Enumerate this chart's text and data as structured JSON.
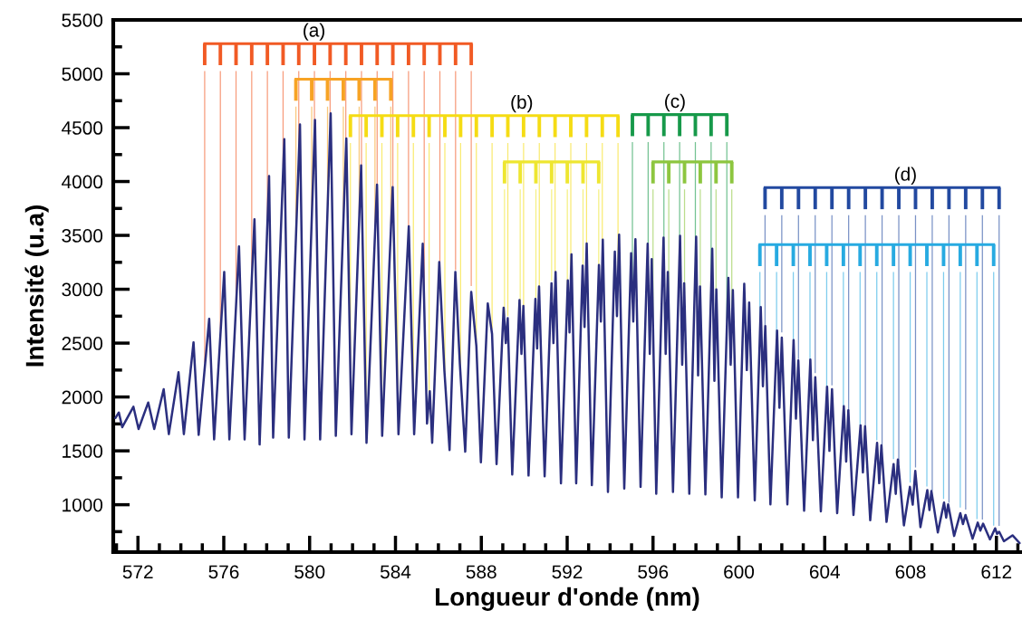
{
  "chart_data": {
    "type": "line",
    "xlabel": "Longueur d'onde (nm)",
    "ylabel": "Intensité (u.a)",
    "xlim": [
      570.85,
      613.15
    ],
    "ylim": [
      560,
      5500
    ],
    "xticks": [
      {
        "value": 571,
        "label": null
      },
      572,
      {
        "value": 573,
        "label": null
      },
      {
        "value": 574,
        "label": null
      },
      {
        "value": 575,
        "label": null
      },
      576,
      {
        "value": 577,
        "label": null
      },
      {
        "value": 578,
        "label": null
      },
      {
        "value": 579,
        "label": null
      },
      580,
      {
        "value": 581,
        "label": null
      },
      {
        "value": 582,
        "label": null
      },
      {
        "value": 583,
        "label": null
      },
      584,
      {
        "value": 585,
        "label": null
      },
      {
        "value": 586,
        "label": null
      },
      {
        "value": 587,
        "label": null
      },
      588,
      {
        "value": 589,
        "label": null
      },
      {
        "value": 590,
        "label": null
      },
      {
        "value": 591,
        "label": null
      },
      592,
      {
        "value": 593,
        "label": null
      },
      {
        "value": 594,
        "label": null
      },
      {
        "value": 595,
        "label": null
      },
      596,
      {
        "value": 597,
        "label": null
      },
      {
        "value": 598,
        "label": null
      },
      {
        "value": 599,
        "label": null
      },
      600,
      {
        "value": 601,
        "label": null
      },
      {
        "value": 602,
        "label": null
      },
      {
        "value": 603,
        "label": null
      },
      604,
      {
        "value": 605,
        "label": null
      },
      {
        "value": 606,
        "label": null
      },
      {
        "value": 607,
        "label": null
      },
      608,
      {
        "value": 609,
        "label": null
      },
      {
        "value": 610,
        "label": null
      },
      {
        "value": 611,
        "label": null
      },
      612,
      {
        "value": 613,
        "label": null
      }
    ],
    "yticks": [
      {
        "value": 750,
        "label": null
      },
      1000,
      {
        "value": 1250,
        "label": null
      },
      1500,
      {
        "value": 1750,
        "label": null
      },
      2000,
      {
        "value": 2250,
        "label": null
      },
      2500,
      {
        "value": 2750,
        "label": null
      },
      3000,
      {
        "value": 3250,
        "label": null
      },
      3500,
      {
        "value": 3750,
        "label": null
      },
      4000,
      {
        "value": 4250,
        "label": null
      },
      4500,
      {
        "value": 4750,
        "label": null
      },
      5000,
      {
        "value": 5250,
        "label": null
      },
      5500
    ],
    "annotations": [
      "(a)",
      "(b)",
      "(c)",
      "(d)"
    ],
    "series": [
      {
        "color": "#2b2f7f",
        "x": [
          570.95,
          571.11,
          571.27,
          571.79,
          572.03,
          572.48,
          572.76,
          573.2,
          573.44,
          573.89,
          574.14,
          574.59,
          574.83,
          575.32,
          575.55,
          576.02,
          576.26,
          576.71,
          576.97,
          577.43,
          577.67,
          578.11,
          578.3,
          578.82,
          579.03,
          579.55,
          579.76,
          580.25,
          580.49,
          580.98,
          581.22,
          581.71,
          581.95,
          582.4,
          582.65,
          583.14,
          583.38,
          583.87,
          584.14,
          584.62,
          584.87,
          585.27,
          585.47,
          585.6,
          585.71,
          586.04,
          586.28,
          586.52,
          586.79,
          587.0,
          587.25,
          587.53,
          587.77,
          587.98,
          588.3,
          588.5,
          588.71,
          589.04,
          589.14,
          589.23,
          589.44,
          589.78,
          589.87,
          589.96,
          590.2,
          590.52,
          590.6,
          590.69,
          590.95,
          591.27,
          591.36,
          591.46,
          591.71,
          592.03,
          592.11,
          592.2,
          592.42,
          592.72,
          592.81,
          592.91,
          593.15,
          593.48,
          593.57,
          593.66,
          593.9,
          594.22,
          594.32,
          594.42,
          594.66,
          594.98,
          595.08,
          595.18,
          595.42,
          595.75,
          595.85,
          595.94,
          596.15,
          596.49,
          596.59,
          596.69,
          596.93,
          597.26,
          597.36,
          597.45,
          597.69,
          598.01,
          598.1,
          598.19,
          598.44,
          598.76,
          598.86,
          598.95,
          599.2,
          599.51,
          599.62,
          599.72,
          599.96,
          600.25,
          600.37,
          600.48,
          600.74,
          601.02,
          601.12,
          601.23,
          601.47,
          601.78,
          601.89,
          602.0,
          602.26,
          602.55,
          602.66,
          602.77,
          603.04,
          603.33,
          603.45,
          603.56,
          603.82,
          604.11,
          604.22,
          604.34,
          604.58,
          604.89,
          605.0,
          605.1,
          605.34,
          605.67,
          605.78,
          605.88,
          606.12,
          606.44,
          606.54,
          606.64,
          606.88,
          607.21,
          607.31,
          607.41,
          607.69,
          607.97,
          608.1,
          608.22,
          608.46,
          608.78,
          608.88,
          608.97,
          609.27,
          609.56,
          609.66,
          609.75,
          610.03,
          610.32,
          610.44,
          610.56,
          610.89,
          611.13,
          611.25,
          611.38,
          611.7,
          611.94,
          612.03,
          612.13,
          612.35,
          612.75,
          613.08
        ],
        "values": [
          1805,
          1856,
          1720,
          1909,
          1703,
          1949,
          1703,
          2072,
          1655,
          2229,
          1655,
          2508,
          1648,
          2725,
          1606,
          3161,
          1606,
          3398,
          1606,
          3650,
          1559,
          4051,
          1623,
          4393,
          1623,
          4530,
          1606,
          4572,
          1606,
          4632,
          1639,
          4400,
          1655,
          4149,
          1574,
          3970,
          1639,
          3947,
          1655,
          3585,
          1655,
          3422,
          1754,
          2053,
          1574,
          3253,
          2242,
          1508,
          3161,
          2307,
          1492,
          2975,
          2470,
          1394,
          2868,
          2585,
          1378,
          2829,
          2500,
          2731,
          1280,
          2900,
          2400,
          2845,
          1271,
          2910,
          2450,
          3025,
          1264,
          3056,
          2500,
          3161,
          1199,
          3083,
          2600,
          3324,
          1199,
          3220,
          2650,
          3424,
          1182,
          3226,
          2700,
          3461,
          1119,
          3350,
          2750,
          3507,
          1150,
          3334,
          2700,
          3465,
          1166,
          3422,
          2400,
          3280,
          1102,
          3480,
          2400,
          3161,
          1119,
          3497,
          2300,
          3056,
          1102,
          3487,
          2200,
          3025,
          1095,
          3376,
          2150,
          2998,
          1068,
          3106,
          2300,
          2992,
          1068,
          3051,
          2250,
          2877,
          1042,
          2835,
          2100,
          2659,
          1003,
          2617,
          1900,
          2551,
          1003,
          2529,
          1800,
          2339,
          945,
          2348,
          1600,
          2183,
          938,
          2095,
          1500,
          2072,
          922,
          1915,
          1400,
          1877,
          905,
          1737,
          1300,
          1727,
          856,
          1574,
          1200,
          1551,
          841,
          1378,
          1100,
          1420,
          808,
          1166,
          1000,
          1314,
          792,
          1136,
          950,
          1127,
          742,
          1020,
          880,
          1003,
          710,
          922,
          820,
          905,
          684,
          834,
          760,
          824,
          678,
          781,
          730,
          749,
          661,
          716,
          644
        ]
      }
    ]
  }
}
